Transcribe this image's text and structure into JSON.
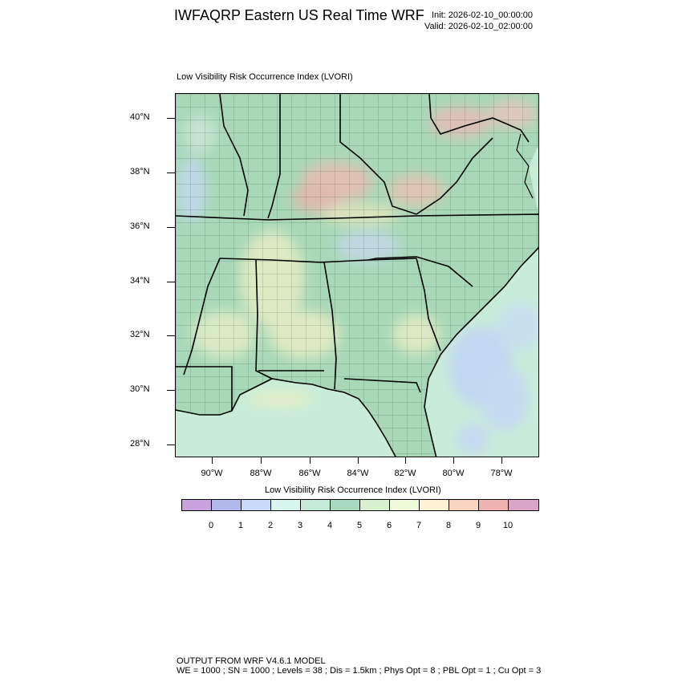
{
  "header": {
    "title": "IWFAQRP Eastern US Real Time WRF",
    "init": "Init: 2026-02-10_00:00:00",
    "valid": "Valid: 2026-02-10_02:00:00"
  },
  "map": {
    "panel_title": "Low Visibility Risk Occurrence Index   (LVORI)",
    "lat_labels": [
      "40°N",
      "38°N",
      "36°N",
      "34°N",
      "32°N",
      "30°N",
      "28°N"
    ],
    "lon_labels": [
      "90°W",
      "88°W",
      "86°W",
      "84°W",
      "82°W",
      "80°W",
      "78°W"
    ],
    "land_color": "#a8d8b8",
    "ocean_color": "#c8ecd8"
  },
  "colorbar": {
    "title": "Low Visibility Risk Occurrence Index  (LVORI)",
    "colors": [
      "#c9a2dd",
      "#b3b8ec",
      "#c9d9fb",
      "#d7f7ee",
      "#c5ecd9",
      "#a9d9bd",
      "#d8f1cd",
      "#eefad8",
      "#fdf3d3",
      "#fbd3c1",
      "#f0b3b3",
      "#d9a5c9"
    ],
    "labels": [
      "0",
      "1",
      "2",
      "3",
      "4",
      "5",
      "6",
      "7",
      "8",
      "9",
      "10"
    ]
  },
  "footer": {
    "line1": "OUTPUT FROM WRF V4.6.1 MODEL",
    "line2": "WE = 1000 ; SN = 1000 ; Levels = 38 ; Dis = 1.5km ; Phys Opt = 8 ; PBL Opt = 1 ; Cu Opt = 3"
  }
}
